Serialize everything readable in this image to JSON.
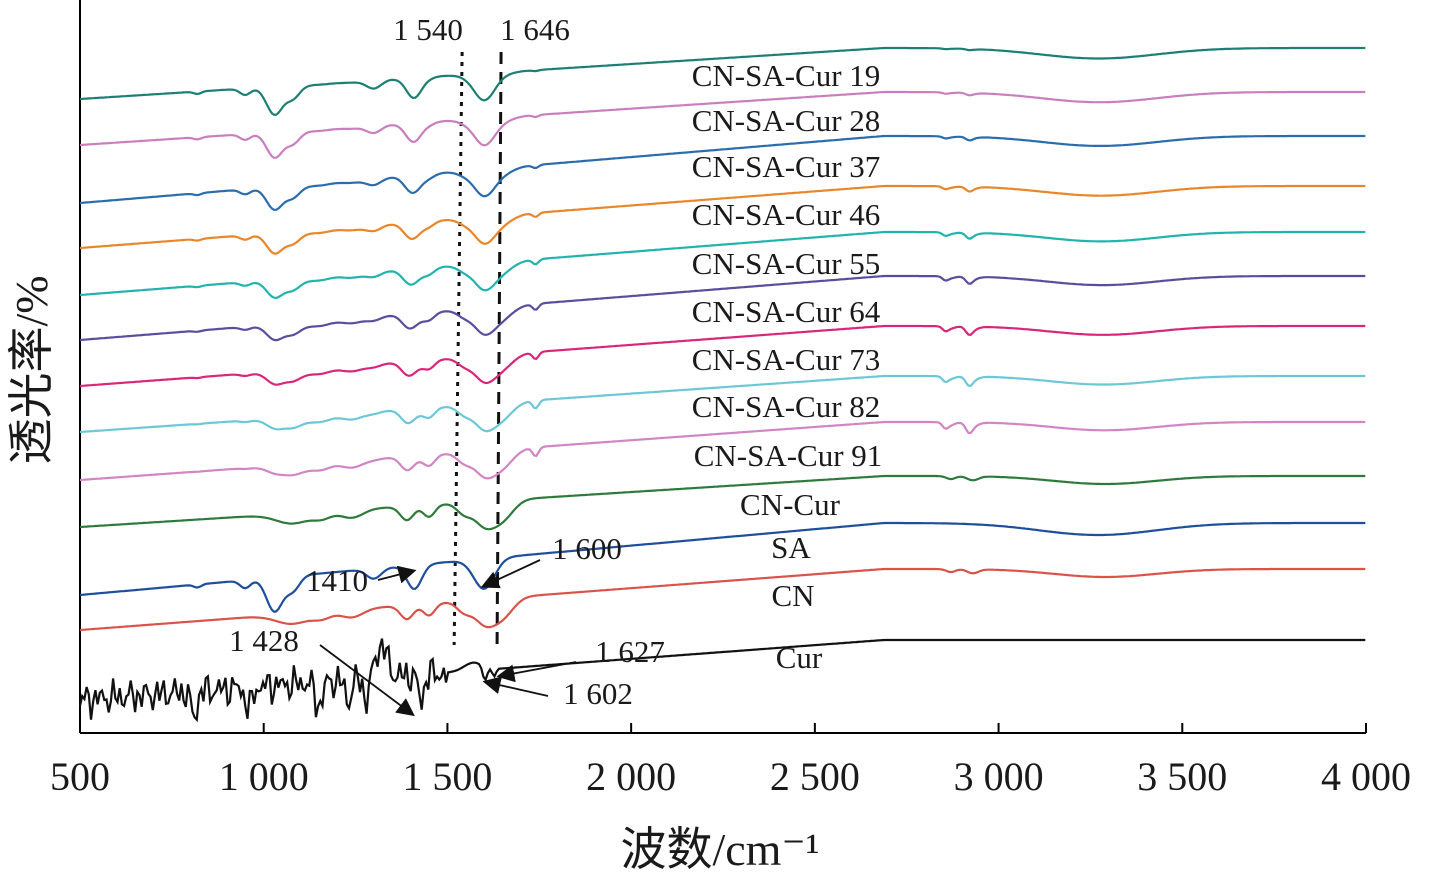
{
  "chart_data": {
    "type": "line",
    "title": "",
    "xlabel": "波数/cm⁻¹",
    "ylabel": "透光率/%",
    "xlim": [
      500,
      4000
    ],
    "x_ticks": [
      500,
      1000,
      1500,
      2000,
      2500,
      3000,
      3500,
      4000
    ],
    "x_tick_labels": [
      "500",
      "1 000",
      "1 500",
      "2 000",
      "2 500",
      "3 000",
      "3 500",
      "4 000"
    ],
    "y_ticks_shown": false,
    "grid": false,
    "legend": "labels placed beside each curve",
    "series": [
      {
        "name": "CN-SA-Cur 19",
        "color": "#1b7f73",
        "offset": 0,
        "profile": "blend",
        "blend": 0.1
      },
      {
        "name": "CN-SA-Cur 28",
        "color": "#c97fbd",
        "offset": 1,
        "profile": "blend",
        "blend": 0.2
      },
      {
        "name": "CN-SA-Cur 37",
        "color": "#2a6cad",
        "offset": 2,
        "profile": "blend",
        "blend": 0.3
      },
      {
        "name": "CN-SA-Cur 46",
        "color": "#e8862a",
        "offset": 3,
        "profile": "blend",
        "blend": 0.4
      },
      {
        "name": "CN-SA-Cur 55",
        "color": "#22b3ad",
        "offset": 4,
        "profile": "blend",
        "blend": 0.5
      },
      {
        "name": "CN-SA-Cur 64",
        "color": "#5b4c9e",
        "offset": 5,
        "profile": "blend",
        "blend": 0.6
      },
      {
        "name": "CN-SA-Cur 73",
        "color": "#d8267a",
        "offset": 6,
        "profile": "blend",
        "blend": 0.7
      },
      {
        "name": "CN-SA-Cur 82",
        "color": "#6cc7d6",
        "offset": 7,
        "profile": "blend",
        "blend": 0.8
      },
      {
        "name": "CN-SA-Cur 91",
        "color": "#d185c4",
        "offset": 8,
        "profile": "blend",
        "blend": 0.9
      },
      {
        "name": "CN-Cur",
        "color": "#2e7a3c",
        "offset": 9,
        "profile": "cn"
      },
      {
        "name": "SA",
        "color": "#1f4e9c",
        "offset": 10,
        "profile": "sa"
      },
      {
        "name": "CN",
        "color": "#d9534a",
        "offset": 11,
        "profile": "cn"
      },
      {
        "name": "Cur",
        "color": "#111111",
        "offset": 12,
        "profile": "cur"
      }
    ],
    "annotations": [
      {
        "text": "1 540",
        "x": 1540
      },
      {
        "text": "1 646",
        "x": 1646
      },
      {
        "text": "1 600",
        "x": 1600
      },
      {
        "text": "1410",
        "x": 1410
      },
      {
        "text": "1 428",
        "x": 1428
      },
      {
        "text": "1 627",
        "x": 1627
      },
      {
        "text": "1 602",
        "x": 1602
      }
    ],
    "reference_lines": [
      {
        "style": "dotted",
        "x": 1540
      },
      {
        "style": "dashed",
        "x": 1646
      }
    ]
  }
}
